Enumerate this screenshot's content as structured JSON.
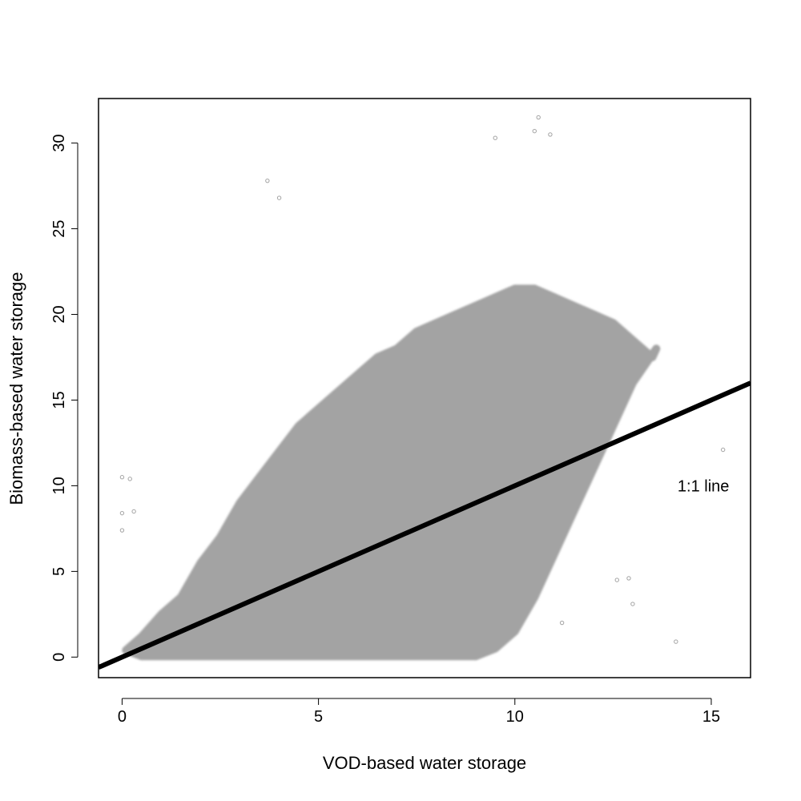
{
  "chart_data": {
    "type": "scatter",
    "title": "",
    "xlabel": "VOD-based water storage",
    "ylabel": "Biomass-based water storage",
    "xlim": [
      -0.6,
      16
    ],
    "ylim": [
      -1.2,
      32.6
    ],
    "xticks": [
      0,
      5,
      10,
      15
    ],
    "yticks": [
      0,
      5,
      10,
      15,
      20,
      25,
      30
    ],
    "grid": false,
    "legend": "none",
    "point_color": "#a3a3a3",
    "line_color": "#000000",
    "series": [
      {
        "kind": "scatter-cloud",
        "description_of_density": "dense",
        "points": [
          [
            0.1,
            0.4
          ],
          [
            0.5,
            1.2
          ],
          [
            1.0,
            2.5
          ],
          [
            1.5,
            3.5
          ],
          [
            2.0,
            5.5
          ],
          [
            2.5,
            7.0
          ],
          [
            3.0,
            9.0
          ],
          [
            3.5,
            10.5
          ],
          [
            4.0,
            12.0
          ],
          [
            4.5,
            13.5
          ],
          [
            5.0,
            14.5
          ],
          [
            5.5,
            15.5
          ],
          [
            6.0,
            16.5
          ],
          [
            6.5,
            17.5
          ],
          [
            7.0,
            18.0
          ],
          [
            7.5,
            19.0
          ],
          [
            8.0,
            19.5
          ],
          [
            8.5,
            20.0
          ],
          [
            9.0,
            20.5
          ],
          [
            9.5,
            21.0
          ],
          [
            10.0,
            21.5
          ],
          [
            10.5,
            21.5
          ],
          [
            11.0,
            21.0
          ],
          [
            11.5,
            20.5
          ],
          [
            12.0,
            20.0
          ],
          [
            12.5,
            19.5
          ],
          [
            13.0,
            18.5
          ],
          [
            13.5,
            17.5
          ],
          [
            13.6,
            18.0
          ],
          [
            13.0,
            16.0
          ],
          [
            12.5,
            13.5
          ],
          [
            12.0,
            11.0
          ],
          [
            11.5,
            8.5
          ],
          [
            11.0,
            6.0
          ],
          [
            10.5,
            3.5
          ],
          [
            10.0,
            1.5
          ],
          [
            9.5,
            0.5
          ],
          [
            9.0,
            0.05
          ],
          [
            8.0,
            0.05
          ],
          [
            6.0,
            0.05
          ],
          [
            4.0,
            0.05
          ],
          [
            2.0,
            0.05
          ],
          [
            0.5,
            0.05
          ],
          [
            0.0,
            10.5
          ],
          [
            0.2,
            10.4
          ],
          [
            0.0,
            8.4
          ],
          [
            0.3,
            8.5
          ],
          [
            0.0,
            7.4
          ],
          [
            3.7,
            27.8
          ],
          [
            4.0,
            26.8
          ],
          [
            10.6,
            31.5
          ],
          [
            9.5,
            30.3
          ],
          [
            10.5,
            30.7
          ],
          [
            10.9,
            30.5
          ],
          [
            12.6,
            4.5
          ],
          [
            12.9,
            4.6
          ],
          [
            13.0,
            3.1
          ],
          [
            15.3,
            12.1
          ],
          [
            14.1,
            0.9
          ],
          [
            11.2,
            2.0
          ]
        ]
      },
      {
        "name": "1:1 line",
        "kind": "reference-line",
        "x": [
          -0.6,
          16
        ],
        "y": [
          -0.6,
          16
        ]
      }
    ],
    "annotations": [
      {
        "text": "1:1 line",
        "x": 14.8,
        "y": 10.0
      }
    ]
  }
}
